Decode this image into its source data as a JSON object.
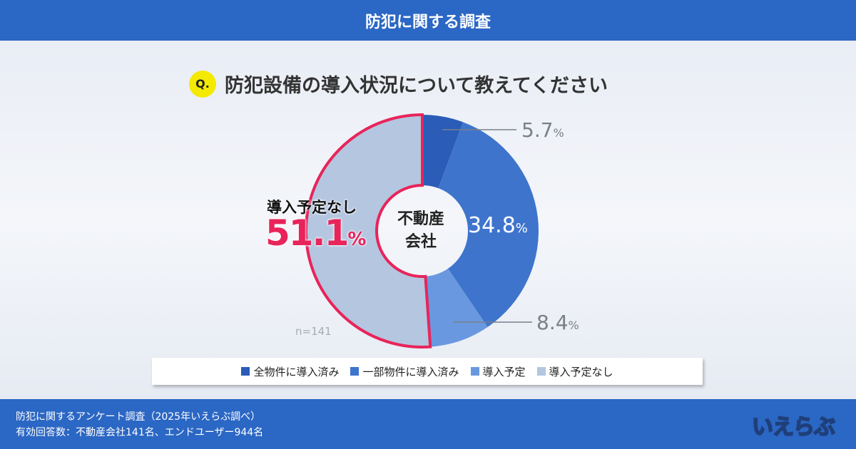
{
  "header": {
    "title": "防犯に関する調査"
  },
  "question": {
    "badge": "Q.",
    "text": "防犯設備の導入状況について教えてください"
  },
  "chart_data": {
    "type": "pie",
    "variant": "donut",
    "center_label": [
      "不動産",
      "会社"
    ],
    "categories": [
      "全物件に導入済み",
      "一部物件に導入済み",
      "導入予定",
      "導入予定なし"
    ],
    "values": [
      5.7,
      34.8,
      8.4,
      51.1
    ],
    "value_labels": [
      "5.7",
      "34.8",
      "8.4",
      "51.1"
    ],
    "unit": "%",
    "colors": [
      "#2a5cb8",
      "#3e74cc",
      "#6a98e0",
      "#b4c6e0"
    ],
    "highlight": {
      "category": "導入予定なし",
      "value": "51.1",
      "color": "#e8245a"
    },
    "n_label": "n=141",
    "legend_position": "bottom"
  },
  "footer": {
    "line1": "防犯に関するアンケート調査（2025年いえらぶ調べ）",
    "line2": "有効回答数：不動産会社141名、エンドユーザー944名",
    "logo": "いえらぶ"
  }
}
